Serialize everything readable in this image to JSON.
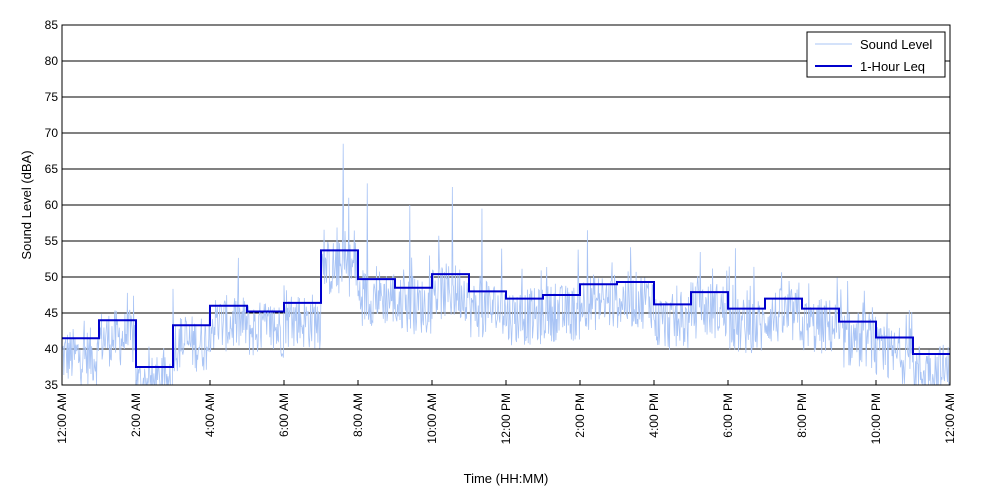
{
  "chart_data": {
    "type": "line",
    "title": "",
    "xlabel": "Time (HH:MM)",
    "ylabel": "Sound Level (dBA)",
    "xlim": [
      0,
      24
    ],
    "ylim": [
      35,
      85
    ],
    "y_ticks": [
      35,
      40,
      45,
      50,
      55,
      60,
      65,
      70,
      75,
      80,
      85
    ],
    "x_ticks": [
      {
        "hour": 0,
        "label": "12:00 AM"
      },
      {
        "hour": 2,
        "label": "2:00 AM"
      },
      {
        "hour": 4,
        "label": "4:00 AM"
      },
      {
        "hour": 6,
        "label": "6:00 AM"
      },
      {
        "hour": 8,
        "label": "8:00 AM"
      },
      {
        "hour": 10,
        "label": "10:00 AM"
      },
      {
        "hour": 12,
        "label": "12:00 PM"
      },
      {
        "hour": 14,
        "label": "2:00 PM"
      },
      {
        "hour": 16,
        "label": "4:00 PM"
      },
      {
        "hour": 18,
        "label": "6:00 PM"
      },
      {
        "hour": 20,
        "label": "8:00 PM"
      },
      {
        "hour": 22,
        "label": "10:00 PM"
      },
      {
        "hour": 24,
        "label": "12:00 AM"
      }
    ],
    "grid": "horizontal",
    "legend_position": "top-right",
    "series": [
      {
        "name": "Sound Level",
        "color": "#a9c4f5",
        "style": "noisy time series around hourly Leq",
        "peaks": [
          {
            "hour": 7.6,
            "value": 68.5
          },
          {
            "hour": 8.25,
            "value": 63
          },
          {
            "hour": 10.55,
            "value": 62.5
          },
          {
            "hour": 7.75,
            "value": 61
          },
          {
            "hour": 9.4,
            "value": 60
          },
          {
            "hour": 11.35,
            "value": 59.5
          },
          {
            "hour": 18.2,
            "value": 54
          },
          {
            "hour": 14.2,
            "value": 56.5
          }
        ]
      },
      {
        "name": "1-Hour Leq",
        "color": "#0000cc",
        "type": "step",
        "x": [
          0,
          1,
          2,
          3,
          4,
          5,
          6,
          7,
          8,
          9,
          10,
          11,
          12,
          13,
          14,
          15,
          16,
          17,
          18,
          19,
          20,
          21,
          22,
          23
        ],
        "values": [
          41.5,
          44.0,
          37.5,
          43.3,
          46.0,
          45.2,
          46.4,
          53.7,
          49.7,
          48.5,
          50.4,
          48.0,
          47.0,
          47.5,
          49.0,
          49.3,
          46.2,
          47.9,
          45.6,
          47.0,
          45.6,
          43.8,
          41.6,
          39.3
        ]
      }
    ]
  }
}
